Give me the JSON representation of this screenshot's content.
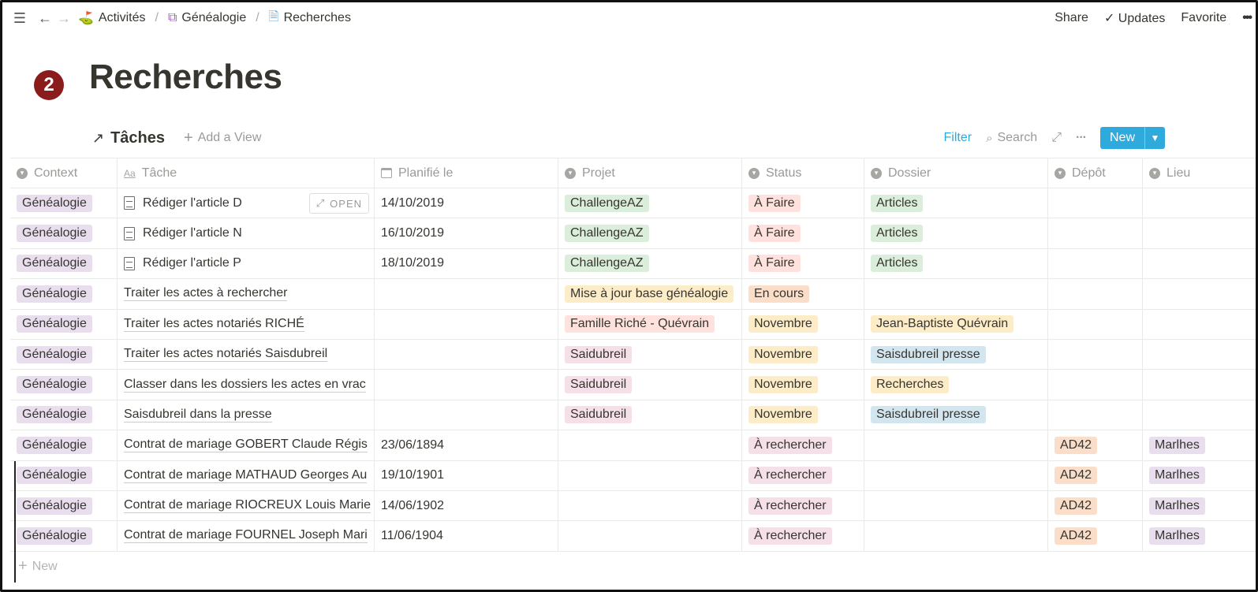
{
  "topbar": {
    "breadcrumbs": [
      {
        "label": "Activités",
        "icon": "signpost-icon"
      },
      {
        "label": "Généalogie",
        "icon": "tree-icon"
      },
      {
        "label": "Recherches",
        "icon": "doc-search-icon"
      }
    ],
    "share": "Share",
    "updates": "Updates",
    "favorite": "Favorite",
    "more": "•••"
  },
  "badge": "2",
  "page": {
    "title": "Recherches"
  },
  "view": {
    "title": "Tâches",
    "add_view": "Add a View",
    "filter": "Filter",
    "search": "Search",
    "new": "New"
  },
  "columns": [
    "Context",
    "Tâche",
    "Planifié le",
    "Projet",
    "Status",
    "Dossier",
    "Dépôt",
    "Lieu"
  ],
  "open_label": "OPEN",
  "rows": [
    {
      "context": "Généalogie",
      "tache": "Rédiger l'article D",
      "doc": true,
      "open": true,
      "planifie": "14/10/2019",
      "projet": "ChallengeAZ",
      "projet_color": "#dbeddb",
      "status": "À Faire",
      "status_color": "#ffe2dd",
      "dossier": "Articles",
      "dossier_color": "#dbeddb",
      "depot": "",
      "lieu": ""
    },
    {
      "context": "Généalogie",
      "tache": "Rédiger l'article N",
      "doc": true,
      "open": false,
      "planifie": "16/10/2019",
      "projet": "ChallengeAZ",
      "projet_color": "#dbeddb",
      "status": "À Faire",
      "status_color": "#ffe2dd",
      "dossier": "Articles",
      "dossier_color": "#dbeddb",
      "depot": "",
      "lieu": ""
    },
    {
      "context": "Généalogie",
      "tache": "Rédiger l'article P",
      "doc": true,
      "open": false,
      "planifie": "18/10/2019",
      "projet": "ChallengeAZ",
      "projet_color": "#dbeddb",
      "status": "À Faire",
      "status_color": "#ffe2dd",
      "dossier": "Articles",
      "dossier_color": "#dbeddb",
      "depot": "",
      "lieu": ""
    },
    {
      "context": "Généalogie",
      "tache": "Traiter les actes à rechercher",
      "doc": false,
      "open": false,
      "planifie": "",
      "projet": "Mise à jour base généalogie",
      "projet_color": "#fdecc8",
      "status": "En cours",
      "status_color": "#fadec9",
      "dossier": "",
      "dossier_color": "",
      "depot": "",
      "lieu": ""
    },
    {
      "context": "Généalogie",
      "tache": "Traiter les actes notariés RICHÉ",
      "doc": false,
      "open": false,
      "planifie": "",
      "projet": "Famille Riché - Quévrain",
      "projet_color": "#ffe2dd",
      "status": "Novembre",
      "status_color": "#fdecc8",
      "dossier": "Jean-Baptiste Quévrain",
      "dossier_color": "#fdecc8",
      "depot": "",
      "lieu": ""
    },
    {
      "context": "Généalogie",
      "tache": "Traiter les actes notariés Saisdubreil",
      "doc": false,
      "open": false,
      "planifie": "",
      "projet": "Saidubreil",
      "projet_color": "#f5e0e9",
      "status": "Novembre",
      "status_color": "#fdecc8",
      "dossier": "Saisdubreil presse",
      "dossier_color": "#d3e5ef",
      "depot": "",
      "lieu": ""
    },
    {
      "context": "Généalogie",
      "tache": "Classer dans les dossiers les actes en vrac",
      "doc": false,
      "open": false,
      "planifie": "",
      "projet": "Saidubreil",
      "projet_color": "#f5e0e9",
      "status": "Novembre",
      "status_color": "#fdecc8",
      "dossier": "Recherches",
      "dossier_color": "#fdecc8",
      "depot": "",
      "lieu": ""
    },
    {
      "context": "Généalogie",
      "tache": "Saisdubreil dans la presse",
      "doc": false,
      "open": false,
      "planifie": "",
      "projet": "Saidubreil",
      "projet_color": "#f5e0e9",
      "status": "Novembre",
      "status_color": "#fdecc8",
      "dossier": "Saisdubreil presse",
      "dossier_color": "#d3e5ef",
      "depot": "",
      "lieu": ""
    },
    {
      "context": "Généalogie",
      "tache": "Contrat de mariage GOBERT Claude Régis",
      "doc": false,
      "open": false,
      "planifie": "23/06/1894",
      "projet": "",
      "projet_color": "",
      "status": "À rechercher",
      "status_color": "#f5e0e9",
      "dossier": "",
      "dossier_color": "",
      "depot": "AD42",
      "lieu": "Marlhes"
    },
    {
      "context": "Généalogie",
      "tache": "Contrat de mariage MATHAUD Georges Au",
      "doc": false,
      "open": false,
      "planifie": "19/10/1901",
      "projet": "",
      "projet_color": "",
      "status": "À rechercher",
      "status_color": "#f5e0e9",
      "dossier": "",
      "dossier_color": "",
      "depot": "AD42",
      "lieu": "Marlhes"
    },
    {
      "context": "Généalogie",
      "tache": "Contrat de mariage RIOCREUX Louis Marie",
      "doc": false,
      "open": false,
      "planifie": "14/06/1902",
      "projet": "",
      "projet_color": "",
      "status": "À rechercher",
      "status_color": "#f5e0e9",
      "dossier": "",
      "dossier_color": "",
      "depot": "AD42",
      "lieu": "Marlhes"
    },
    {
      "context": "Généalogie",
      "tache": "Contrat de mariage FOURNEL Joseph Mari",
      "doc": false,
      "open": false,
      "planifie": "11/06/1904",
      "projet": "",
      "projet_color": "",
      "status": "À rechercher",
      "status_color": "#f5e0e9",
      "dossier": "",
      "dossier_color": "",
      "depot": "AD42",
      "lieu": "Marlhes"
    }
  ],
  "context_color": "#e8deee",
  "depot_color": "#fadec9",
  "lieu_color": "#e8deee",
  "add_row": "New"
}
